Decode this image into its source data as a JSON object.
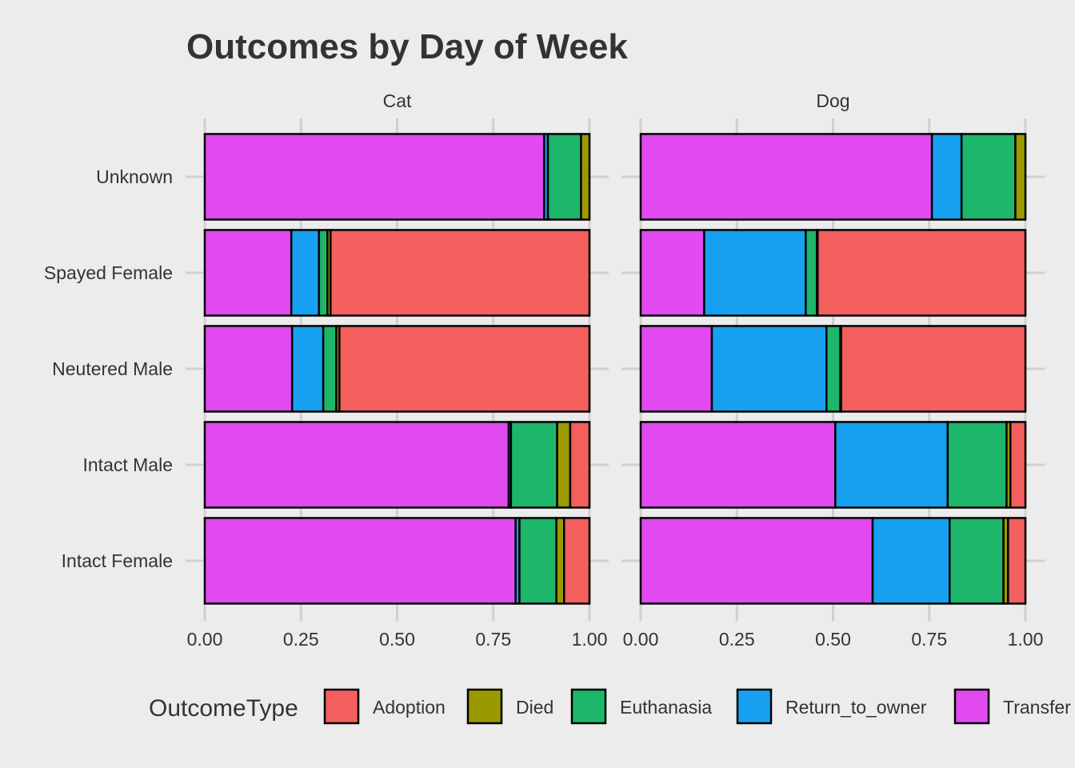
{
  "chart_data": {
    "type": "bar",
    "orientation": "horizontal",
    "stacked": "fill",
    "title": "Outcomes by Day of Week",
    "facets": [
      "Cat",
      "Dog"
    ],
    "categories": [
      "Unknown",
      "Spayed Female",
      "Neutered Male",
      "Intact Male",
      "Intact Female"
    ],
    "x_ticks": [
      "0.00",
      "0.25",
      "0.50",
      "0.75",
      "1.00"
    ],
    "xlim": [
      0,
      1
    ],
    "grid": true,
    "legend": {
      "title": "OutcomeType",
      "position": "bottom",
      "entries": [
        "Adoption",
        "Died",
        "Euthanasia",
        "Return_to_owner",
        "Transfer"
      ]
    },
    "stack_order": [
      "Transfer",
      "Return_to_owner",
      "Euthanasia",
      "Died",
      "Adoption"
    ],
    "colors": {
      "Adoption": "#F25F5C",
      "Died": "#9A9A00",
      "Euthanasia": "#1DB66B",
      "Return_to_owner": "#18A0F0",
      "Transfer": "#E04AEF"
    },
    "series": {
      "Cat": {
        "Unknown": {
          "Transfer": 0.882,
          "Return_to_owner": 0.01,
          "Euthanasia": 0.086,
          "Died": 0.022,
          "Adoption": 0.0
        },
        "Spayed Female": {
          "Transfer": 0.225,
          "Return_to_owner": 0.072,
          "Euthanasia": 0.022,
          "Died": 0.008,
          "Adoption": 0.673
        },
        "Neutered Male": {
          "Transfer": 0.227,
          "Return_to_owner": 0.081,
          "Euthanasia": 0.034,
          "Died": 0.008,
          "Adoption": 0.65
        },
        "Intact Male": {
          "Transfer": 0.79,
          "Return_to_owner": 0.006,
          "Euthanasia": 0.12,
          "Died": 0.034,
          "Adoption": 0.05
        },
        "Intact Female": {
          "Transfer": 0.808,
          "Return_to_owner": 0.01,
          "Euthanasia": 0.096,
          "Died": 0.02,
          "Adoption": 0.066
        }
      },
      "Dog": {
        "Unknown": {
          "Transfer": 0.757,
          "Return_to_owner": 0.077,
          "Euthanasia": 0.14,
          "Died": 0.026,
          "Adoption": 0.0
        },
        "Spayed Female": {
          "Transfer": 0.165,
          "Return_to_owner": 0.264,
          "Euthanasia": 0.029,
          "Died": 0.002,
          "Adoption": 0.54
        },
        "Neutered Male": {
          "Transfer": 0.185,
          "Return_to_owner": 0.298,
          "Euthanasia": 0.036,
          "Died": 0.002,
          "Adoption": 0.479
        },
        "Intact Male": {
          "Transfer": 0.506,
          "Return_to_owner": 0.292,
          "Euthanasia": 0.153,
          "Died": 0.01,
          "Adoption": 0.039
        },
        "Intact Female": {
          "Transfer": 0.603,
          "Return_to_owner": 0.2,
          "Euthanasia": 0.14,
          "Died": 0.012,
          "Adoption": 0.045
        }
      }
    }
  }
}
